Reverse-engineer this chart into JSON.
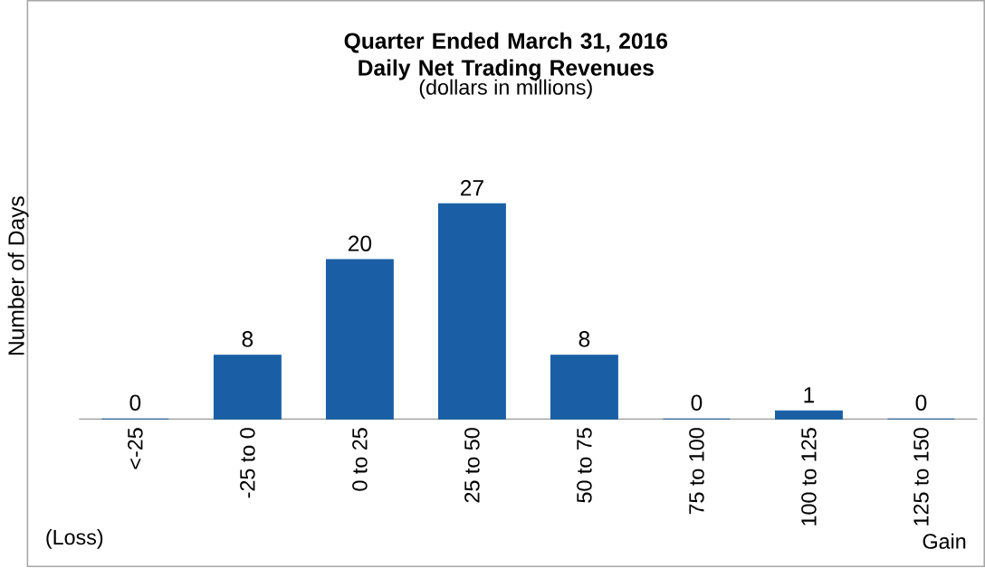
{
  "chart_data": {
    "type": "bar",
    "title": "Quarter Ended March 31, 2016 Daily Net Trading Revenues",
    "subtitle": "(dollars in millions)",
    "ylabel": "Number of Days",
    "categories": [
      "<-25",
      "-25 to 0",
      "0 to 25",
      "25 to 50",
      "50 to 75",
      "75 to 100",
      "100 to 125",
      "125 to 150"
    ],
    "values": [
      0,
      8,
      20,
      27,
      8,
      0,
      1,
      0
    ],
    "color": "#1a5fa6",
    "data_labels": true,
    "annotations": [
      "(Loss)",
      "Gain"
    ]
  }
}
